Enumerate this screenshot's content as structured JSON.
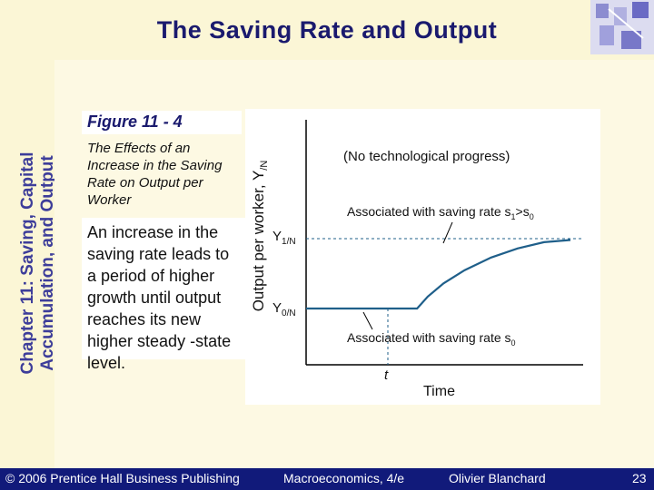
{
  "slide": {
    "title": "The Saving Rate and Output",
    "side_title_line1": "Chapter 11: Saving, Capital",
    "side_title_line2": "Accumulation, and Output",
    "figure_label": "Figure 11 - 4",
    "figure_caption": "The Effects of an Increase in the Saving Rate on Output per Worker",
    "description": "An increase in the saving rate leads to a period of higher growth until output reaches its new higher steady -state level.",
    "colors": {
      "title": "#1a1a6e",
      "footer_bg": "#111a7a",
      "curve": "#1f5f8a"
    }
  },
  "chart_data": {
    "type": "line",
    "ylabel_main": "Output per worker, Y",
    "ylabel_sub": "/N",
    "xlabel": "Time",
    "note": "(No technological progress)",
    "y_label_high_main": "Y",
    "y_label_high_sub": "1/N",
    "y_label_low_main": "Y",
    "y_label_low_sub": "0/N",
    "t_label": "t",
    "series": [
      {
        "name": "Associated with saving rate s1>s0",
        "label_text": "Associated with saving rate s",
        "label_sub": "1",
        "label_tail": ">s",
        "label_sub2": "0"
      },
      {
        "name": "Associated with saving rate s0",
        "label_text": "Associated with saving rate s",
        "label_sub": "0"
      }
    ],
    "points": [
      {
        "x": 0.0,
        "y": 0.0
      },
      {
        "x": 0.42,
        "y": 0.0
      },
      {
        "x": 0.42,
        "y": 0.0
      },
      {
        "x": 0.46,
        "y": 0.17
      },
      {
        "x": 0.52,
        "y": 0.36
      },
      {
        "x": 0.6,
        "y": 0.55
      },
      {
        "x": 0.7,
        "y": 0.73
      },
      {
        "x": 0.8,
        "y": 0.86
      },
      {
        "x": 0.9,
        "y": 0.95
      },
      {
        "x": 1.0,
        "y": 0.98
      }
    ],
    "grid": false,
    "legend": "none"
  },
  "footer": {
    "copyright": "© 2006 Prentice Hall Business Publishing",
    "book": "Macroeconomics, 4/e",
    "author": "Olivier Blanchard",
    "page": "23"
  }
}
